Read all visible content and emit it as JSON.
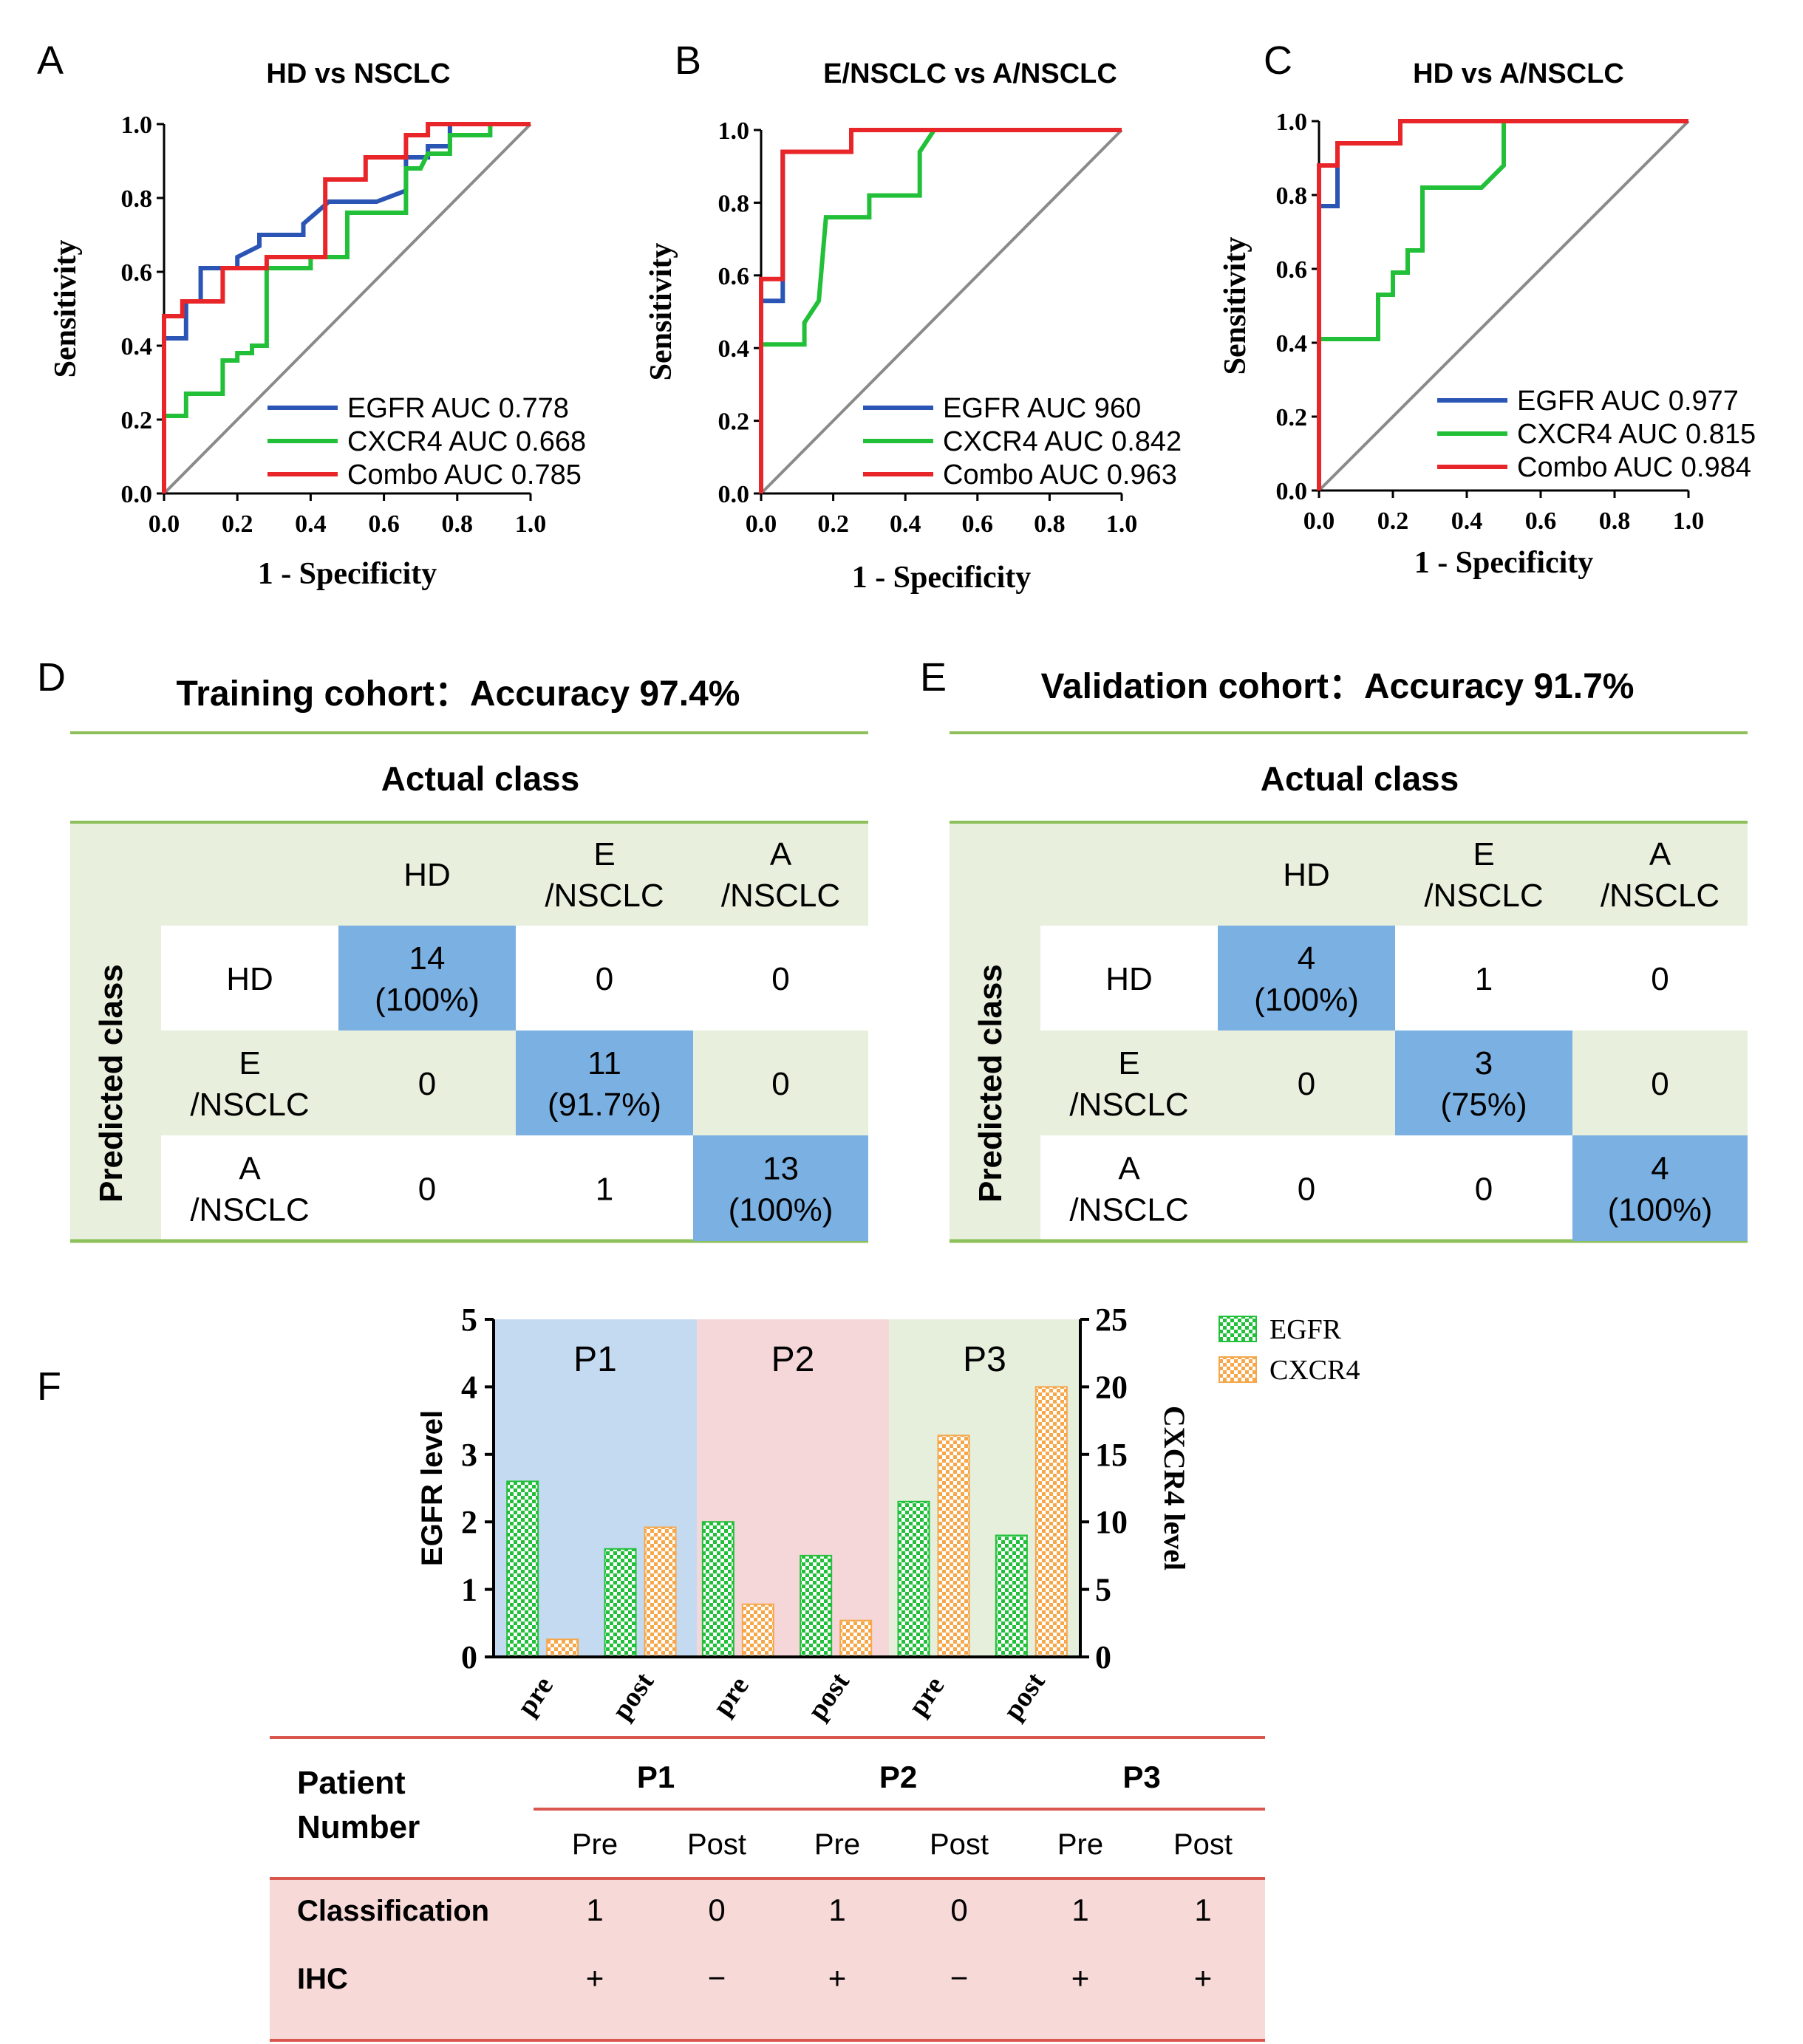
{
  "panel_labels": {
    "A": "A",
    "B": "B",
    "C": "C",
    "D": "D",
    "E": "E",
    "F": "F"
  },
  "chart_data": [
    {
      "id": "A",
      "type": "line",
      "title": "HD vs NSCLC",
      "xlabel": "1 - Specificity",
      "ylabel": "Sensitivity",
      "xlim": [
        0,
        1
      ],
      "ylim": [
        0,
        1
      ],
      "xticks": [
        "0.0",
        "0.2",
        "0.4",
        "0.6",
        "0.8",
        "1.0"
      ],
      "yticks": [
        "0.0",
        "0.2",
        "0.4",
        "0.6",
        "0.8",
        "1.0"
      ],
      "series": [
        {
          "name": "EGFR",
          "legend": "EGFR  AUC 0.778",
          "color": "#2b55b5",
          "points": [
            [
              0,
              0
            ],
            [
              0,
              0.42
            ],
            [
              0.06,
              0.42
            ],
            [
              0.06,
              0.52
            ],
            [
              0.1,
              0.52
            ],
            [
              0.1,
              0.61
            ],
            [
              0.2,
              0.61
            ],
            [
              0.2,
              0.64
            ],
            [
              0.26,
              0.67
            ],
            [
              0.26,
              0.7
            ],
            [
              0.38,
              0.7
            ],
            [
              0.38,
              0.73
            ],
            [
              0.45,
              0.79
            ],
            [
              0.58,
              0.79
            ],
            [
              0.66,
              0.82
            ],
            [
              0.66,
              0.91
            ],
            [
              0.72,
              0.91
            ],
            [
              0.72,
              0.94
            ],
            [
              0.78,
              0.94
            ],
            [
              0.78,
              1.0
            ],
            [
              1,
              1
            ]
          ]
        },
        {
          "name": "CXCR4",
          "legend": "CXCR4 AUC 0.668",
          "color": "#22c039",
          "points": [
            [
              0,
              0
            ],
            [
              0,
              0.21
            ],
            [
              0.06,
              0.21
            ],
            [
              0.06,
              0.27
            ],
            [
              0.16,
              0.27
            ],
            [
              0.16,
              0.36
            ],
            [
              0.2,
              0.36
            ],
            [
              0.2,
              0.38
            ],
            [
              0.24,
              0.38
            ],
            [
              0.24,
              0.4
            ],
            [
              0.28,
              0.4
            ],
            [
              0.28,
              0.61
            ],
            [
              0.4,
              0.61
            ],
            [
              0.4,
              0.64
            ],
            [
              0.5,
              0.64
            ],
            [
              0.5,
              0.76
            ],
            [
              0.66,
              0.76
            ],
            [
              0.66,
              0.88
            ],
            [
              0.7,
              0.88
            ],
            [
              0.72,
              0.92
            ],
            [
              0.78,
              0.92
            ],
            [
              0.78,
              0.97
            ],
            [
              0.89,
              0.97
            ],
            [
              0.89,
              1.0
            ],
            [
              1,
              1
            ]
          ]
        },
        {
          "name": "Combo",
          "legend": "Combo AUC 0.785",
          "color": "#e8262a",
          "points": [
            [
              0,
              0
            ],
            [
              0,
              0.48
            ],
            [
              0.05,
              0.48
            ],
            [
              0.05,
              0.52
            ],
            [
              0.16,
              0.52
            ],
            [
              0.16,
              0.61
            ],
            [
              0.28,
              0.61
            ],
            [
              0.28,
              0.64
            ],
            [
              0.44,
              0.64
            ],
            [
              0.44,
              0.85
            ],
            [
              0.55,
              0.85
            ],
            [
              0.55,
              0.91
            ],
            [
              0.66,
              0.91
            ],
            [
              0.66,
              0.97
            ],
            [
              0.72,
              0.97
            ],
            [
              0.72,
              1.0
            ],
            [
              1,
              1
            ]
          ]
        }
      ]
    },
    {
      "id": "B",
      "type": "line",
      "title": "E/NSCLC vs A/NSCLC",
      "xlabel": "1 - Specificity",
      "ylabel": "Sensitivity",
      "xlim": [
        0,
        1
      ],
      "ylim": [
        0,
        1
      ],
      "xticks": [
        "0.0",
        "0.2",
        "0.4",
        "0.6",
        "0.8",
        "1.0"
      ],
      "yticks": [
        "0.0",
        "0.2",
        "0.4",
        "0.6",
        "0.8",
        "1.0"
      ],
      "series": [
        {
          "name": "EGFR",
          "legend": "EGFR  AUC 960",
          "color": "#2b55b5",
          "points": [
            [
              0,
              0
            ],
            [
              0,
              0.53
            ],
            [
              0.06,
              0.53
            ],
            [
              0.06,
              0.94
            ],
            [
              0.25,
              0.94
            ],
            [
              0.25,
              1.0
            ],
            [
              1,
              1
            ]
          ]
        },
        {
          "name": "CXCR4",
          "legend": "CXCR4 AUC 0.842",
          "color": "#22c039",
          "points": [
            [
              0,
              0
            ],
            [
              0,
              0.41
            ],
            [
              0.12,
              0.41
            ],
            [
              0.12,
              0.47
            ],
            [
              0.16,
              0.53
            ],
            [
              0.18,
              0.76
            ],
            [
              0.3,
              0.76
            ],
            [
              0.3,
              0.82
            ],
            [
              0.44,
              0.82
            ],
            [
              0.44,
              0.94
            ],
            [
              0.48,
              1.0
            ],
            [
              1,
              1
            ]
          ]
        },
        {
          "name": "Combo",
          "legend": "Combo AUC 0.963",
          "color": "#e8262a",
          "points": [
            [
              0,
              0
            ],
            [
              0,
              0.59
            ],
            [
              0.06,
              0.59
            ],
            [
              0.06,
              0.94
            ],
            [
              0.25,
              0.94
            ],
            [
              0.25,
              1.0
            ],
            [
              1,
              1
            ]
          ]
        }
      ]
    },
    {
      "id": "C",
      "type": "line",
      "title": "HD vs  A/NSCLC",
      "xlabel": "1 - Specificity",
      "ylabel": "Sensitivity",
      "xlim": [
        0,
        1
      ],
      "ylim": [
        0,
        1
      ],
      "xticks": [
        "0.0",
        "0.2",
        "0.4",
        "0.6",
        "0.8",
        "1.0"
      ],
      "yticks": [
        "0.0",
        "0.2",
        "0.4",
        "0.6",
        "0.8",
        "1.0"
      ],
      "series": [
        {
          "name": "EGFR",
          "legend": "EGFR  AUC 0.977",
          "color": "#2b55b5",
          "points": [
            [
              0,
              0
            ],
            [
              0,
              0.77
            ],
            [
              0.05,
              0.77
            ],
            [
              0.05,
              0.94
            ],
            [
              0.22,
              0.94
            ],
            [
              0.22,
              1.0
            ],
            [
              1,
              1
            ]
          ]
        },
        {
          "name": "CXCR4",
          "legend": "CXCR4 AUC 0.815",
          "color": "#22c039",
          "points": [
            [
              0,
              0
            ],
            [
              0,
              0.41
            ],
            [
              0.16,
              0.41
            ],
            [
              0.16,
              0.53
            ],
            [
              0.2,
              0.53
            ],
            [
              0.2,
              0.59
            ],
            [
              0.24,
              0.59
            ],
            [
              0.24,
              0.65
            ],
            [
              0.28,
              0.65
            ],
            [
              0.28,
              0.82
            ],
            [
              0.44,
              0.82
            ],
            [
              0.5,
              0.88
            ],
            [
              0.5,
              1.0
            ],
            [
              1,
              1
            ]
          ]
        },
        {
          "name": "Combo",
          "legend": "Combo AUC 0.984",
          "color": "#e8262a",
          "points": [
            [
              0,
              0
            ],
            [
              0,
              0.88
            ],
            [
              0.05,
              0.88
            ],
            [
              0.05,
              0.94
            ],
            [
              0.22,
              0.94
            ],
            [
              0.22,
              1.0
            ],
            [
              1,
              1
            ]
          ]
        }
      ]
    },
    {
      "id": "F",
      "type": "bar",
      "categories": [
        "pre",
        "post",
        "pre",
        "post",
        "pre",
        "post"
      ],
      "groups": [
        "P1",
        "P2",
        "P3"
      ],
      "ylabel": "EGFR level",
      "y2label": "CXCR4 level",
      "ylim": [
        0,
        5
      ],
      "y2lim": [
        0,
        25
      ],
      "yticks": [
        "0",
        "1",
        "2",
        "3",
        "4",
        "5"
      ],
      "y2ticks": [
        "0",
        "5",
        "10",
        "15",
        "20",
        "25"
      ],
      "series": [
        {
          "name": "EGFR",
          "axis": "left",
          "color": "#22c03a",
          "values": [
            2.6,
            1.6,
            2.0,
            1.5,
            2.3,
            1.8
          ]
        },
        {
          "name": "CXCR4",
          "axis": "right",
          "color": "#f5a74a",
          "values": [
            1.3,
            9.6,
            3.9,
            2.7,
            16.4,
            20.0
          ]
        }
      ]
    }
  ],
  "matrices": [
    {
      "id": "D",
      "title": "Training cohort：Accuracy 97.4%",
      "actual_label": "Actual class",
      "predicted_label": "Predicted class",
      "col_headers": [
        [
          "HD"
        ],
        [
          "E",
          "/NSCLC"
        ],
        [
          "A",
          "/NSCLC"
        ]
      ],
      "row_headers": [
        [
          "HD"
        ],
        [
          "E",
          "/NSCLC"
        ],
        [
          "A",
          "/NSCLC"
        ]
      ],
      "cells": [
        [
          [
            "14",
            "(100%)"
          ],
          [
            "0"
          ],
          [
            "0"
          ]
        ],
        [
          [
            "0"
          ],
          [
            "11",
            "(91.7%)"
          ],
          [
            "0"
          ]
        ],
        [
          [
            "0"
          ],
          [
            "1"
          ],
          [
            "13",
            "(100%)"
          ]
        ]
      ]
    },
    {
      "id": "E",
      "title": "Validation cohort：Accuracy 91.7%",
      "actual_label": "Actual class",
      "predicted_label": "Predicted class",
      "col_headers": [
        [
          "HD"
        ],
        [
          "E",
          "/NSCLC"
        ],
        [
          "A",
          "/NSCLC"
        ]
      ],
      "row_headers": [
        [
          "HD"
        ],
        [
          "E",
          "/NSCLC"
        ],
        [
          "A",
          "/NSCLC"
        ]
      ],
      "cells": [
        [
          [
            "4",
            "(100%)"
          ],
          [
            "1"
          ],
          [
            "0"
          ]
        ],
        [
          [
            "0"
          ],
          [
            "3",
            "(75%)"
          ],
          [
            "0"
          ]
        ],
        [
          [
            "0"
          ],
          [
            "0"
          ],
          [
            "4",
            "(100%)"
          ]
        ]
      ]
    }
  ],
  "patient_table": {
    "header_lines": [
      "Patient",
      "Number"
    ],
    "patients": [
      "P1",
      "P2",
      "P3"
    ],
    "subcols": [
      "Pre",
      "Post",
      "Pre",
      "Post",
      "Pre",
      "Post"
    ],
    "rows": [
      {
        "label": "Classification",
        "values": [
          "1",
          "0",
          "1",
          "0",
          "1",
          "1"
        ]
      },
      {
        "label": "IHC",
        "values": [
          "+",
          "−",
          "+",
          "−",
          "+",
          "+"
        ]
      }
    ]
  },
  "colors": {
    "accent_green_line": "#8dc05a",
    "matrix_bg": "#e8efdc",
    "matrix_highlight": "#7ab0e2",
    "table_line": "#d9574f",
    "table_bg": "#f7d9d8",
    "p1_bg": "#c4daf1",
    "p2_bg": "#f6d7d9",
    "p3_bg": "#e6eedc"
  }
}
